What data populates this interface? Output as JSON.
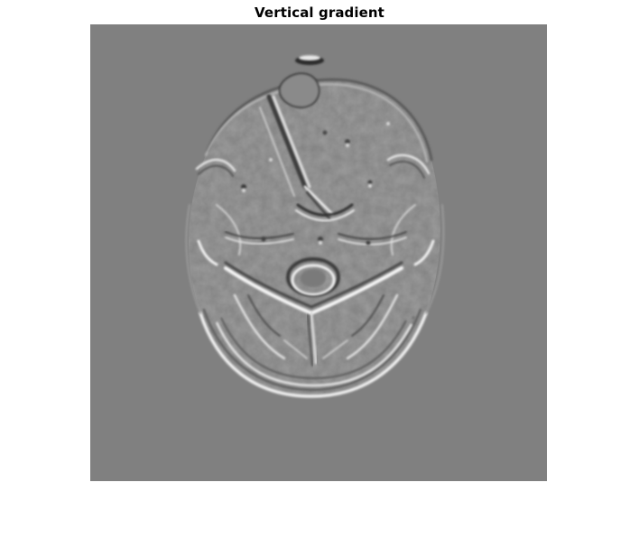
{
  "figure": {
    "title": "Vertical gradient"
  },
  "image": {
    "subject": "axial head scan filtered with a vertical gradient operator",
    "colormap": "gray",
    "background_color": "#808080"
  }
}
